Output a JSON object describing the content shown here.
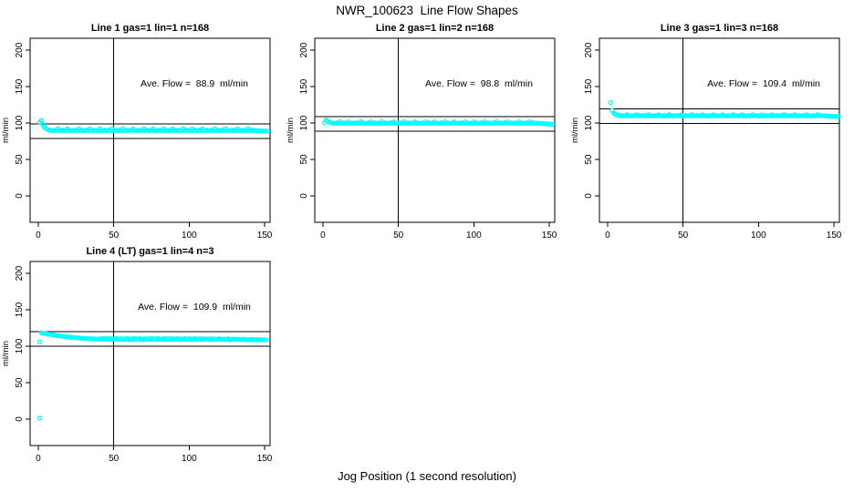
{
  "page": {
    "title": "NWR_100623  Line Flow Shapes",
    "xlabel": "Jog Position (1 second resolution)"
  },
  "colors": {
    "points": "#00FFFF",
    "axis": "#000000",
    "background": "#FFFFFF"
  },
  "chart_data": [
    {
      "type": "scatter",
      "title": "Line 1 gas=1 lin=1 n=168",
      "annotation": "Ave. Flow =  88.9  ml/min",
      "ave_flow": 88.9,
      "ylabel": "ml/min",
      "x_ticks": [
        0,
        50,
        100,
        150
      ],
      "y_ticks": [
        0,
        50,
        100,
        150,
        200
      ],
      "xlim": [
        -5.4,
        153.6
      ],
      "ylim": [
        -36.3,
        216.3
      ],
      "vline_x": 50,
      "hlines": [
        98.9,
        78.9
      ],
      "x_start": 1,
      "x_step": 1,
      "y": [
        100.8,
        103.5,
        97.5,
        94.5,
        92.5,
        91.2,
        90.5,
        90.1,
        89.8,
        89.5,
        90.1,
        89.4,
        92.2,
        89.9,
        89.5,
        90.2,
        89.6,
        90.0,
        92.0,
        89.6,
        90.1,
        89.5,
        89.9,
        90.3,
        89.4,
        89.8,
        92.3,
        89.7,
        90.0,
        89.4,
        89.9,
        90.2,
        89.5,
        92.0,
        89.8,
        89.4,
        90.1,
        89.7,
        90.0,
        89.3,
        92.2,
        89.8,
        89.5,
        90.2,
        89.6,
        89.9,
        90.4,
        89.4,
        92.1,
        89.8,
        89.5,
        90.0,
        89.6,
        90.2,
        89.4,
        92.3,
        89.9,
        89.5,
        90.1,
        89.7,
        89.9,
        90.3,
        92.0,
        89.6,
        89.9,
        89.4,
        90.1,
        89.8,
        89.5,
        92.2,
        89.9,
        90.2,
        89.5,
        89.8,
        90.0,
        92.1,
        89.6,
        89.9,
        89.4,
        90.2,
        89.7,
        89.9,
        92.3,
        89.5,
        90.0,
        89.8,
        89.4,
        90.1,
        92.0,
        89.7,
        89.9,
        89.5,
        90.2,
        89.8,
        89.4,
        92.2,
        89.9,
        90.0,
        89.6,
        89.9,
        89.3,
        92.1,
        89.7,
        90.0,
        89.5,
        89.9,
        90.2,
        89.4,
        92.0,
        89.8,
        89.5,
        90.1,
        89.7,
        89.9,
        90.3,
        89.4,
        92.2,
        89.8,
        89.5,
        90.0,
        89.6,
        90.2,
        89.4,
        92.1,
        89.9,
        89.5,
        90.1,
        89.7,
        89.9,
        90.3,
        89.4,
        92.0,
        89.6,
        89.9,
        89.4,
        90.1,
        89.8,
        89.5,
        92.2,
        89.9,
        90.2,
        89.5,
        89.8,
        90.0,
        89.2,
        89.6,
        88.9,
        89.3,
        89.0,
        88.8,
        89.1,
        88.7
      ],
      "extra_points": []
    },
    {
      "type": "scatter",
      "title": "Line 2 gas=1 lin=2 n=168",
      "annotation": "Ave. Flow =  98.8  ml/min",
      "ave_flow": 98.8,
      "ylabel": "ml/min",
      "x_ticks": [
        0,
        50,
        100,
        150
      ],
      "y_ticks": [
        0,
        50,
        100,
        150,
        200
      ],
      "xlim": [
        -5.4,
        153.6
      ],
      "ylim": [
        -36.3,
        216.3
      ],
      "vline_x": 50,
      "hlines": [
        108.8,
        88.8
      ],
      "x_start": 1,
      "x_step": 1,
      "y": [
        100.2,
        104.0,
        103.0,
        101.5,
        100.5,
        100.0,
        99.8,
        99.5,
        100.1,
        99.4,
        101.9,
        99.9,
        99.5,
        100.2,
        99.6,
        100.0,
        101.7,
        99.6,
        100.1,
        99.5,
        99.9,
        100.3,
        99.4,
        99.8,
        101.9,
        99.7,
        100.0,
        99.4,
        99.9,
        100.2,
        99.5,
        101.7,
        99.8,
        99.4,
        100.1,
        99.7,
        100.0,
        99.3,
        101.9,
        99.8,
        99.5,
        100.2,
        99.6,
        99.9,
        100.4,
        99.4,
        101.8,
        99.8,
        99.5,
        100.0,
        99.6,
        100.2,
        99.4,
        101.9,
        99.9,
        99.5,
        100.1,
        99.7,
        99.9,
        100.3,
        101.7,
        99.6,
        99.9,
        99.4,
        100.1,
        99.8,
        99.5,
        101.8,
        99.9,
        100.2,
        99.5,
        99.8,
        100.0,
        101.7,
        99.6,
        99.9,
        99.4,
        100.2,
        99.7,
        99.9,
        101.9,
        99.5,
        100.0,
        99.8,
        99.4,
        100.1,
        101.7,
        99.7,
        99.9,
        99.5,
        100.2,
        99.8,
        99.4,
        101.8,
        99.9,
        100.0,
        99.6,
        99.9,
        99.3,
        101.7,
        99.7,
        100.0,
        99.5,
        99.9,
        100.2,
        99.4,
        101.8,
        99.8,
        99.5,
        100.1,
        99.7,
        99.9,
        100.3,
        99.4,
        101.9,
        99.8,
        99.5,
        100.0,
        99.6,
        100.2,
        99.4,
        101.8,
        99.9,
        99.5,
        100.1,
        99.7,
        99.9,
        100.3,
        99.4,
        101.7,
        99.6,
        99.9,
        99.4,
        100.1,
        99.8,
        99.5,
        101.8,
        99.9,
        100.2,
        99.5,
        99.8,
        100.0,
        99.2,
        99.6,
        98.9,
        99.3,
        99.0,
        98.6,
        98.9,
        98.4,
        98.6,
        98.3
      ],
      "extra_points": []
    },
    {
      "type": "scatter",
      "title": "Line 3 gas=1 lin=3 n=168",
      "annotation": "Ave. Flow =  109.4  ml/min",
      "ave_flow": 109.4,
      "ylabel": "ml/min",
      "x_ticks": [
        0,
        50,
        100,
        150
      ],
      "y_ticks": [
        0,
        50,
        100,
        150,
        200
      ],
      "xlim": [
        -5.4,
        153.6
      ],
      "ylim": [
        -36.3,
        216.3
      ],
      "vline_x": 50,
      "hlines": [
        119.4,
        99.4
      ],
      "x_start": 2,
      "x_step": 1,
      "y": [
        128.0,
        117.0,
        113.8,
        112.2,
        111.2,
        110.6,
        110.3,
        109.9,
        109.6,
        110.2,
        109.5,
        111.5,
        110.0,
        109.6,
        110.3,
        109.7,
        110.1,
        111.4,
        109.7,
        110.2,
        109.6,
        110.0,
        110.4,
        109.5,
        109.9,
        111.6,
        109.8,
        110.1,
        109.5,
        110.0,
        110.3,
        109.6,
        111.4,
        109.9,
        109.5,
        110.2,
        109.8,
        110.1,
        109.4,
        111.6,
        109.9,
        109.6,
        110.3,
        109.7,
        110.0,
        110.5,
        109.5,
        111.5,
        109.9,
        109.6,
        110.1,
        109.7,
        110.3,
        109.5,
        111.6,
        110.0,
        109.6,
        110.2,
        109.8,
        110.0,
        110.4,
        111.4,
        109.7,
        110.0,
        109.5,
        110.2,
        109.9,
        109.6,
        111.5,
        110.0,
        110.3,
        109.6,
        109.9,
        110.1,
        111.4,
        109.7,
        110.0,
        109.5,
        110.3,
        109.8,
        110.0,
        111.6,
        109.6,
        110.1,
        109.9,
        109.5,
        110.2,
        111.4,
        109.8,
        110.0,
        109.6,
        110.3,
        109.9,
        109.5,
        111.5,
        110.0,
        110.1,
        109.7,
        110.0,
        109.4,
        111.4,
        109.8,
        110.1,
        109.6,
        110.0,
        110.3,
        109.5,
        111.5,
        109.9,
        109.6,
        110.2,
        109.8,
        110.0,
        110.4,
        109.5,
        111.6,
        109.9,
        109.6,
        110.1,
        109.7,
        110.3,
        109.5,
        111.5,
        110.0,
        109.6,
        110.2,
        109.8,
        110.0,
        110.4,
        109.5,
        111.4,
        109.7,
        110.0,
        109.5,
        110.2,
        109.9,
        109.6,
        111.5,
        110.0,
        110.3,
        109.6,
        109.9,
        110.1,
        109.3,
        109.7,
        109.1,
        109.4,
        109.2,
        108.9,
        109.1,
        108.8,
        108.9
      ],
      "extra_points": []
    },
    {
      "type": "scatter",
      "title": "Line 4 (LT) gas=1 lin=4 n=3",
      "annotation": "Ave. Flow =  109.9  ml/min",
      "ave_flow": 109.9,
      "ylabel": "ml/min",
      "x_ticks": [
        0,
        50,
        100,
        150
      ],
      "y_ticks": [
        0,
        50,
        100,
        150,
        200
      ],
      "xlim": [
        -5.4,
        153.6
      ],
      "ylim": [
        -36.3,
        216.3
      ],
      "vline_x": 50,
      "hlines": [
        119.9,
        99.9
      ],
      "x_start": 2,
      "x_step": 1,
      "y": [
        118.4,
        118.1,
        117.7,
        117.3,
        116.9,
        116.5,
        116.2,
        115.8,
        115.5,
        115.1,
        114.8,
        114.5,
        114.2,
        113.9,
        113.6,
        113.4,
        113.1,
        112.9,
        112.6,
        112.4,
        112.2,
        112.0,
        111.8,
        111.6,
        111.5,
        111.3,
        111.1,
        111.0,
        110.8,
        110.7,
        110.6,
        110.4,
        110.3,
        110.2,
        110.1,
        110.0,
        110.0,
        109.9,
        109.8,
        109.8,
        110.6,
        109.1,
        110.9,
        109.5,
        110.2,
        108.9,
        110.7,
        109.3,
        110.0,
        109.6,
        110.8,
        109.2,
        109.9,
        110.5,
        108.8,
        110.1,
        109.4,
        110.6,
        109.0,
        109.8,
        110.3,
        108.9,
        110.7,
        109.5,
        109.9,
        110.4,
        109.1,
        110.0,
        108.8,
        110.5,
        109.6,
        110.1,
        109.2,
        110.8,
        109.4,
        109.9,
        110.3,
        108.9,
        110.6,
        109.5,
        110.0,
        109.3,
        110.7,
        108.8,
        109.8,
        110.2,
        109.0,
        110.5,
        109.4,
        110.1,
        109.7,
        110.4,
        108.9,
        110.0,
        109.5,
        110.6,
        109.2,
        109.9,
        110.3,
        108.8,
        110.1,
        109.4,
        110.5,
        109.0,
        109.8,
        110.2,
        108.9,
        110.4,
        109.5,
        109.9,
        110.0,
        109.2,
        110.3,
        108.8,
        109.7,
        110.1,
        109.3,
        109.9,
        110.4,
        108.9,
        109.6,
        110.0,
        109.1,
        109.8,
        110.2,
        108.8,
        109.5,
        109.9,
        109.2,
        109.7,
        109.3,
        109.8,
        108.8,
        109.5,
        109.0,
        109.6,
        108.7,
        109.3,
        108.9,
        109.4,
        108.6,
        109.1,
        108.8,
        109.2,
        108.5,
        109.0,
        108.8,
        108.6,
        108.9,
        108.7
      ],
      "extra_points": [
        [
          1,
          1.5
        ],
        [
          1,
          106.0
        ]
      ]
    }
  ]
}
